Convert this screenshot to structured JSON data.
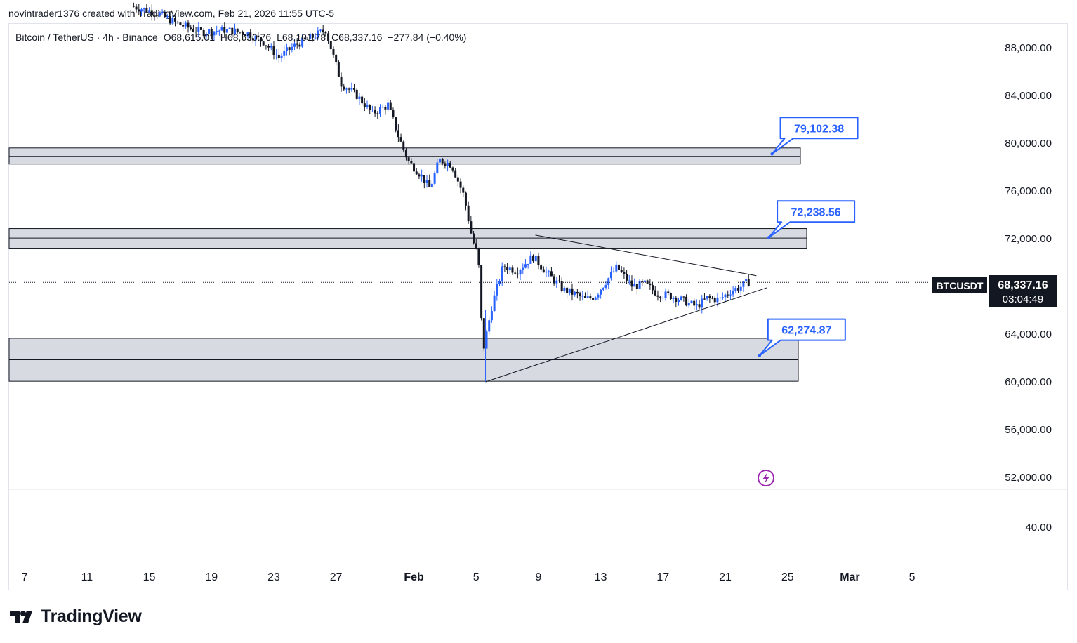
{
  "attribution": "novintrader1376 created with TradingView.com, Feb 21, 2026 11:55 UTC-5",
  "legend": {
    "symbol": "Bitcoin / TetherUS · 4h · Binance",
    "open": "O68,615.01",
    "high": "H68,630.76",
    "low": "L68,101.78",
    "close": "C68,337.16",
    "change": "−277.84 (−0.40%)"
  },
  "price_tag": {
    "ticker": "BTCUSDT",
    "price": "68,337.16",
    "countdown": "03:04:49"
  },
  "logo": "TradingView",
  "colors": {
    "up": "#2962ff",
    "down": "#131722",
    "zone_fill": "#d1d4dc",
    "callout": "#2962ff",
    "lightning": "#9c27b0"
  },
  "chart_data": {
    "type": "candlestick",
    "symbol": "BTCUSDT",
    "timeframe": "4h",
    "y_axis_labels": [
      "88,000.00",
      "84,000.00",
      "80,000.00",
      "76,000.00",
      "72,000.00",
      "64,000.00",
      "60,000.00",
      "56,000.00",
      "52,000.00"
    ],
    "y_axis_ticks": [
      88000,
      84000,
      80000,
      76000,
      72000,
      64000,
      60000,
      56000,
      52000
    ],
    "y_range": [
      51000,
      90000
    ],
    "lower_pane_label": "40.00",
    "x_axis_labels": [
      "7",
      "11",
      "15",
      "19",
      "23",
      "27",
      "Feb",
      "5",
      "9",
      "13",
      "17",
      "21",
      "25",
      "Mar",
      "5"
    ],
    "x_tick_days": [
      -25,
      -21,
      -17,
      -13,
      -9,
      -5,
      0,
      4,
      8,
      12,
      16,
      20,
      24,
      28,
      32
    ],
    "x_range_days": [
      -26,
      37
    ],
    "last_price": 68337.16,
    "zones": [
      {
        "from": 78250,
        "to": 79600,
        "mid": 78900
      },
      {
        "from": 71150,
        "to": 72850,
        "mid": 72050
      },
      {
        "from": 60050,
        "to": 63650,
        "mid": 61850
      }
    ],
    "annotations": [
      {
        "text": "79,102.38",
        "target_day": 23.0,
        "target_price": 79100
      },
      {
        "text": "72,238.56",
        "target_day": 22.8,
        "target_price": 72100
      },
      {
        "text": "62,274.87",
        "target_day": 22.2,
        "target_price": 62200
      }
    ],
    "triangle": {
      "upper": {
        "start_day": 7.8,
        "start_price": 72300,
        "end_day": 22.0,
        "end_price": 68900
      },
      "lower": {
        "start_day": 4.6,
        "start_price": 60000,
        "end_day": 22.7,
        "end_price": 67900
      }
    },
    "candle_path_days": [
      -18,
      -16.5,
      -15,
      -13.5,
      -12,
      -10.5,
      -9.5,
      -8.5,
      -7.5,
      -6.5,
      -5.5,
      -4.5,
      -3.5,
      -2.5,
      -1.5,
      -0.8,
      -0.2,
      0.5,
      1.2,
      1.8,
      2.6,
      3.4,
      3.9,
      4.3,
      4.6,
      5.2,
      5.9,
      6.8,
      7.8,
      8.8,
      9.8,
      10.6,
      11.2,
      11.8,
      12.5,
      13.2,
      14.2,
      15.0,
      15.8,
      16.7,
      17.5,
      18.3,
      19.0,
      19.8,
      20.5,
      21.2,
      21.6
    ],
    "candle_path_prices": [
      91500,
      91000,
      90000,
      89300,
      89500,
      89200,
      88500,
      87200,
      88200,
      88800,
      89500,
      85000,
      84000,
      82500,
      83200,
      80500,
      78500,
      77500,
      76200,
      78600,
      78200,
      75500,
      72000,
      70500,
      62500,
      66500,
      69700,
      69300,
      70500,
      69000,
      67700,
      67300,
      66900,
      67200,
      68400,
      69600,
      68000,
      68200,
      67400,
      67200,
      66800,
      66300,
      67000,
      66900,
      67600,
      68000,
      68337.16
    ]
  }
}
